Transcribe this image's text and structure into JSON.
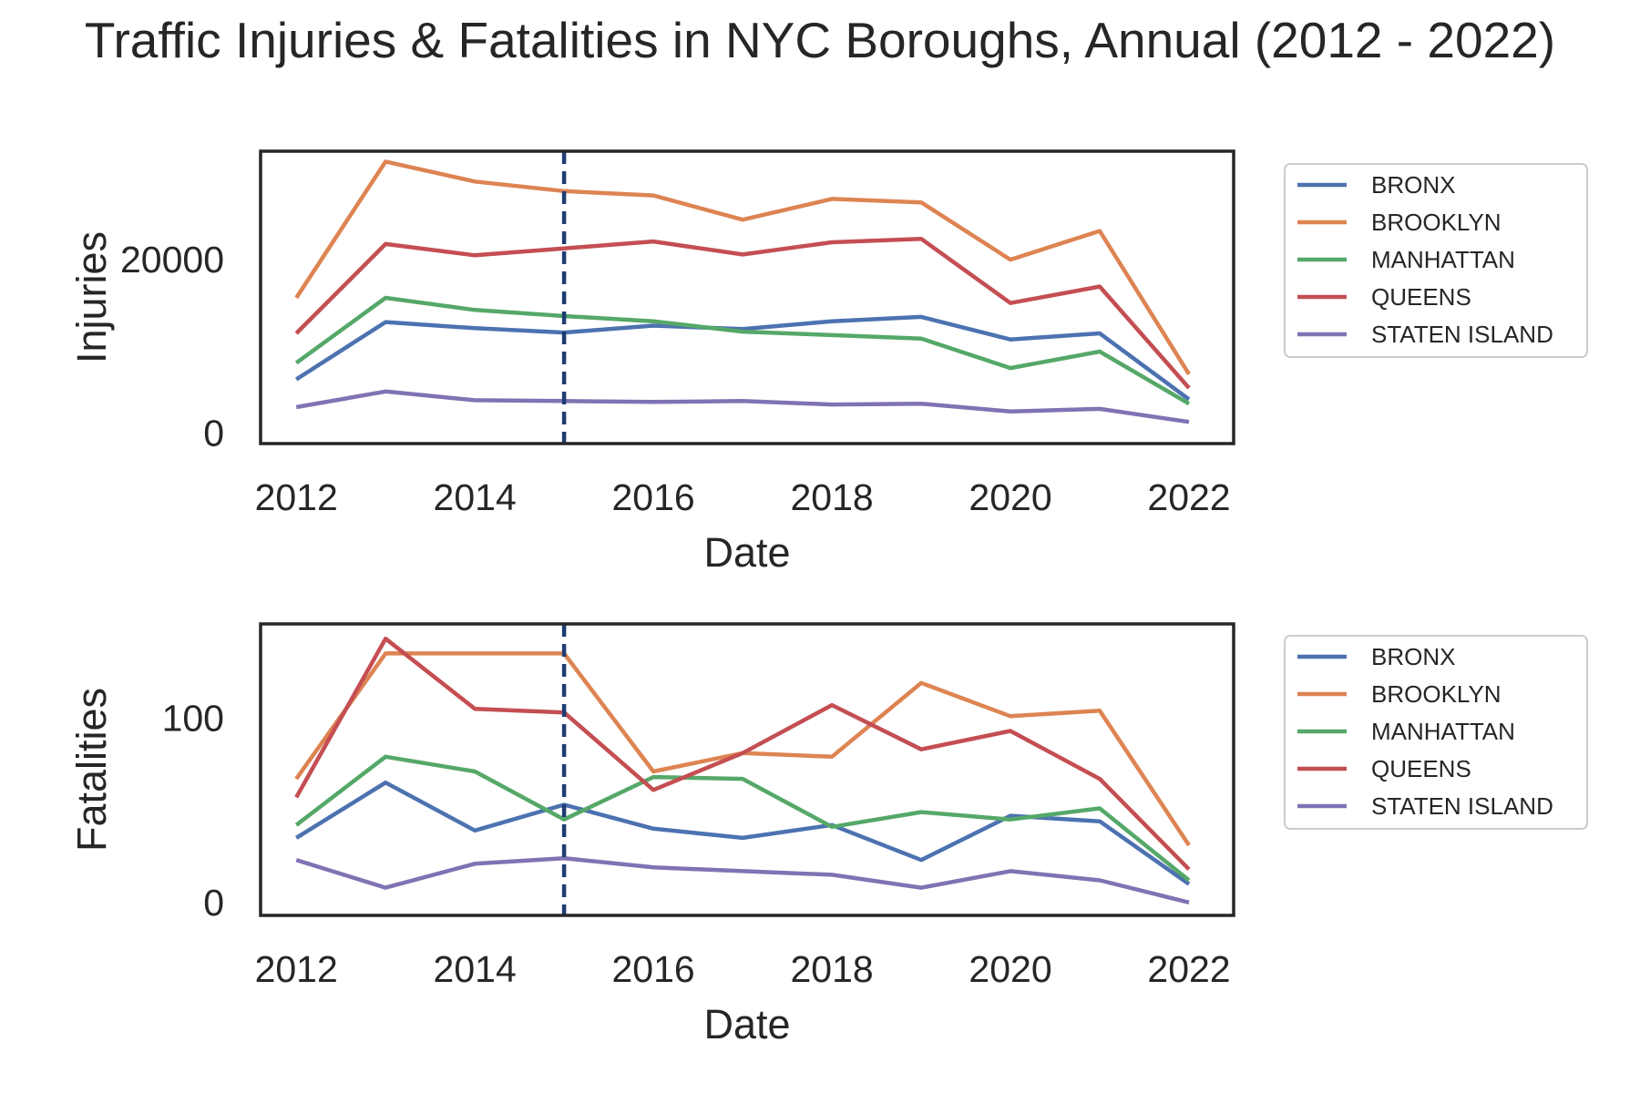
{
  "title": "Traffic Injuries & Fatalities in NYC Boroughs, Annual (2012 - 2022)",
  "colors": {
    "BRONX": "#4c72b0",
    "BROOKLYN": "#dd8452",
    "MANHATTAN": "#55a868",
    "QUEENS": "#c44e52",
    "STATEN ISLAND": "#8172b3",
    "marker_line": "#1f3d73",
    "axes": "#262626"
  },
  "chart_data": [
    {
      "type": "line",
      "xlabel": "Date",
      "ylabel": "Injuries",
      "xlim": [
        2011.6,
        2022.5
      ],
      "ylim": [
        -1200,
        32500
      ],
      "xticks": [
        2012,
        2014,
        2016,
        2018,
        2020,
        2022
      ],
      "yticks": [
        0,
        20000
      ],
      "vline_x": 2015,
      "grid": false,
      "legend_position": "outside-right",
      "x": [
        2012,
        2013,
        2014,
        2015,
        2016,
        2017,
        2018,
        2019,
        2020,
        2021,
        2022
      ],
      "series": [
        {
          "name": "BRONX",
          "values": [
            6200,
            12800,
            12100,
            11600,
            12400,
            12000,
            12900,
            13400,
            10800,
            11500,
            3900
          ]
        },
        {
          "name": "BROOKLYN",
          "values": [
            15600,
            31300,
            29000,
            27900,
            27400,
            24600,
            27000,
            26600,
            20000,
            23300,
            6800
          ]
        },
        {
          "name": "MANHATTAN",
          "values": [
            8100,
            15600,
            14200,
            13500,
            12900,
            11700,
            11300,
            10900,
            7500,
            9400,
            3400
          ]
        },
        {
          "name": "QUEENS",
          "values": [
            11500,
            21800,
            20500,
            21300,
            22100,
            20600,
            22000,
            22400,
            15000,
            16900,
            5200
          ]
        },
        {
          "name": "STATEN ISLAND",
          "values": [
            3000,
            4800,
            3800,
            3700,
            3600,
            3700,
            3300,
            3400,
            2500,
            2800,
            1300
          ]
        }
      ]
    },
    {
      "type": "line",
      "xlabel": "Date",
      "ylabel": "Fatalities",
      "xlim": [
        2011.6,
        2022.5
      ],
      "ylim": [
        -7,
        151
      ],
      "xticks": [
        2012,
        2014,
        2016,
        2018,
        2020,
        2022
      ],
      "yticks": [
        0,
        100
      ],
      "vline_x": 2015,
      "grid": false,
      "legend_position": "outside-right",
      "x": [
        2012,
        2013,
        2014,
        2015,
        2016,
        2017,
        2018,
        2019,
        2020,
        2021,
        2022
      ],
      "series": [
        {
          "name": "BRONX",
          "values": [
            35,
            65,
            39,
            53,
            40,
            35,
            42,
            23,
            47,
            44,
            10
          ]
        },
        {
          "name": "BROOKLYN",
          "values": [
            67,
            135,
            135,
            135,
            71,
            81,
            79,
            119,
            101,
            104,
            31
          ]
        },
        {
          "name": "MANHATTAN",
          "values": [
            42,
            79,
            71,
            45,
            68,
            67,
            41,
            49,
            45,
            51,
            12
          ]
        },
        {
          "name": "QUEENS",
          "values": [
            57,
            143,
            105,
            103,
            61,
            81,
            107,
            83,
            93,
            67,
            18
          ]
        },
        {
          "name": "STATEN ISLAND",
          "values": [
            23,
            8,
            21,
            24,
            19,
            17,
            15,
            8,
            17,
            12,
            0
          ]
        }
      ]
    }
  ]
}
